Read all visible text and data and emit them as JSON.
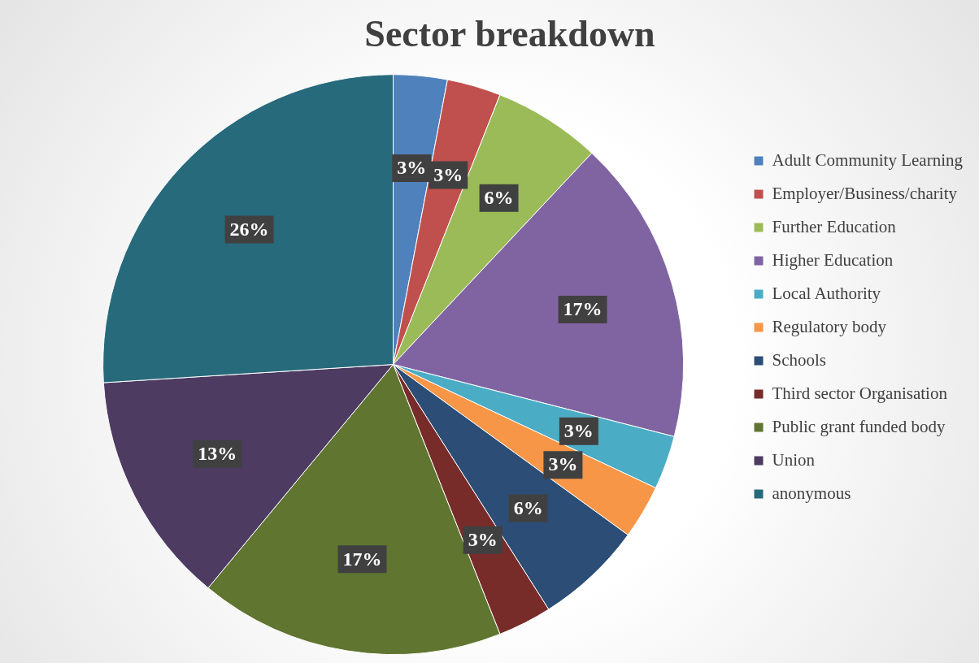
{
  "chart_data": {
    "type": "pie",
    "title": "Sector breakdown",
    "categories": [
      "Adult Community Learning",
      "Employer/Business/charity",
      "Further Education",
      "Higher Education",
      "Local Authority",
      "Regulatory body",
      "Schools",
      "Third sector Organisation",
      "Public grant funded body",
      "Union",
      "anonymous"
    ],
    "values": [
      3,
      3,
      6,
      17,
      3,
      3,
      6,
      3,
      17,
      13,
      26
    ],
    "value_labels": [
      "3%",
      "3%",
      "6%",
      "17%",
      "3%",
      "3%",
      "6%",
      "3%",
      "17%",
      "13%",
      "26%"
    ],
    "colors": [
      "#4f81bd",
      "#c0504d",
      "#9bbb59",
      "#8064a2",
      "#4bacc6",
      "#f79646",
      "#2c4d75",
      "#772c2a",
      "#5f7530",
      "#4d3b62",
      "#276a7c"
    ],
    "legend": "right"
  }
}
